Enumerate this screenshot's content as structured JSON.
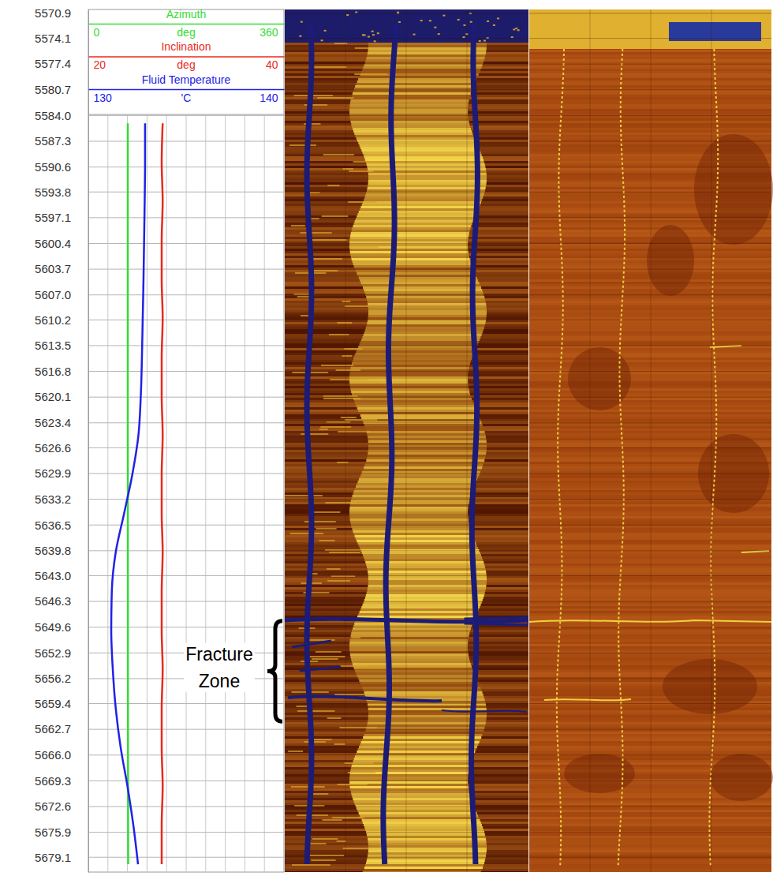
{
  "chart_data": {
    "type": "line",
    "x": [
      5585,
      5590,
      5595,
      5600,
      5605,
      5610,
      5615,
      5620,
      5625,
      5630,
      5635,
      5640,
      5645,
      5650,
      5655,
      5660,
      5665,
      5670,
      5675,
      5680
    ],
    "xlim": [
      5570.4,
      5681.0
    ],
    "xticks": [
      5570.9,
      5574.1,
      5577.4,
      5580.7,
      {
        "value": 5584,
        "label": "5584.0"
      },
      5587.3,
      5590.6,
      5593.8,
      5597.1,
      5600.4,
      5603.7,
      {
        "value": 5607,
        "label": "5607.0"
      },
      5610.2,
      5613.5,
      5616.8,
      5620.1,
      5623.4,
      5626.6,
      5629.9,
      5633.2,
      5636.5,
      5639.8,
      {
        "value": 5643,
        "label": "5643.0"
      },
      5646.3,
      5649.6,
      5652.9,
      5656.2,
      5659.4,
      5662.7,
      {
        "value": 5666,
        "label": "5666.0"
      },
      5669.3,
      5672.6,
      5675.9,
      5679.1
    ],
    "grid": true,
    "series": [
      {
        "name": "Azimuth",
        "unit": "deg",
        "color": "#33dd33",
        "ylim": [
          0,
          360
        ],
        "yticks": [
          0,
          360
        ],
        "values": [
          72.6,
          72.6,
          72.6,
          72.6,
          72.6,
          72.6,
          72.6,
          72.6,
          72.6,
          72.7,
          72.7,
          72.7,
          72.8,
          72.8,
          72.8,
          72.9,
          73.0,
          73.1,
          73.2,
          73.3
        ]
      },
      {
        "name": "Inclination",
        "unit": "deg",
        "color": "#e82a1e",
        "ylim": [
          20,
          40
        ],
        "yticks": [
          20,
          40
        ],
        "values": [
          27.6,
          27.5,
          27.6,
          27.5,
          27.5,
          27.6,
          27.5,
          27.5,
          27.6,
          27.5,
          27.5,
          27.6,
          27.5,
          27.5,
          27.6,
          27.5,
          27.5,
          27.6,
          27.5,
          27.5
        ]
      },
      {
        "name": "Fluid Temperature",
        "unit": "'C",
        "color": "#2121e6",
        "ylim": [
          130,
          140
        ],
        "yticks": [
          130,
          140
        ],
        "values": [
          132.9,
          132.9,
          132.88,
          132.85,
          132.82,
          132.78,
          132.74,
          132.68,
          132.56,
          132.25,
          131.83,
          131.4,
          131.2,
          131.17,
          131.25,
          131.4,
          131.65,
          132.0,
          132.3,
          132.54
        ]
      }
    ],
    "annotations": [
      {
        "text": "Fracture Zone",
        "from": 5648.8,
        "to": 5661.7
      }
    ]
  }
}
